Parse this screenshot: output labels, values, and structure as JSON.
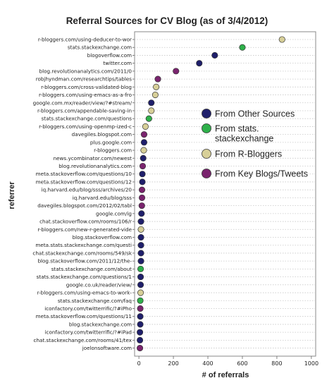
{
  "chart_data": {
    "type": "scatter",
    "title": "Referral Sources for CV Blog (as of 3/4/2012)",
    "xlabel": "# of referrals",
    "ylabel": "referrer",
    "xlim": [
      -25,
      1025
    ],
    "xticks": [
      0,
      200,
      400,
      600,
      800,
      1000
    ],
    "grid": "horizontal dotted",
    "legend_position": "right-middle",
    "groups": [
      {
        "name": "From Other Sources",
        "color": "#1f1f6b"
      },
      {
        "name": "From stats.\nstackexchange",
        "color": "#2eb04a"
      },
      {
        "name": "From R-Bloggers",
        "color": "#d7cf98"
      },
      {
        "name": "From Key Blogs/Tweets",
        "color": "#7a246e"
      }
    ],
    "categories": [
      "r-bloggers.com/using-deducer-to-wor",
      "stats.stackexchange.com",
      "blogoverflow.com",
      "twitter.com",
      "blog.revolutionanalytics.com/2011/0",
      "robjhyndman.com/researchtips/tables",
      "r-bloggers.com/cross-validated-blog",
      "r-bloggers.com/using-emacs-as-a-fro",
      "google.com.mx/reader/view/?#stream/",
      "r-bloggers.com/appendable-saving-in",
      "stats.stackexchange.com/questions",
      "r-bloggers.com/using-openmp-ized-c",
      "davegiles.blogspot.com",
      "plus.google.com",
      "r-bloggers.com",
      "news.ycombinator.com/newest",
      "blog.revolutionanalytics.com",
      "meta.stackoverflow.com/questions/10",
      "meta.stackoverflow.com/questions/12",
      "iq.harvard.edu/blog/sss/archives/20",
      "iq.harvard.edu/blog/sss",
      "davegiles.blogspot.com/2012/02/tabl",
      "google.com/ig",
      "chat.stackoverflow.com/rooms/106/r",
      "r-bloggers.com/new-r-generated-vide",
      "blog.stackoverflow.com",
      "meta.stats.stackexchange.com/questi",
      "chat.stackexchange.com/rooms/549/sk",
      "blog.stackoverflow.com/2011/12/the-",
      "stats.stackexchange.com/about",
      "stats.stackexchange.com/questions/1",
      "google.co.uk/reader/view/",
      "r-bloggers.com/using-emacs-to-work-",
      "stats.stackexchange.com/faq",
      "iconfactory.com/twitterrific/?#iPho",
      "meta.stackoverflow.com/questions/11",
      "blog.stackexchange.com",
      "iconfactory.com/twitterrific/?#iPad",
      "chat.stackexchange.com/rooms/41/tex",
      "joelonsoftware.com"
    ],
    "values": [
      830,
      600,
      440,
      350,
      215,
      110,
      100,
      95,
      72,
      72,
      58,
      38,
      30,
      30,
      28,
      25,
      22,
      20,
      20,
      18,
      18,
      17,
      15,
      12,
      12,
      12,
      12,
      12,
      12,
      10,
      10,
      10,
      10,
      8,
      8,
      8,
      8,
      6,
      6,
      6
    ],
    "group_index": [
      2,
      1,
      0,
      0,
      3,
      3,
      2,
      2,
      0,
      2,
      1,
      2,
      3,
      0,
      2,
      0,
      3,
      0,
      0,
      3,
      3,
      3,
      0,
      0,
      2,
      0,
      0,
      0,
      0,
      1,
      0,
      0,
      2,
      1,
      3,
      0,
      0,
      0,
      0,
      3
    ]
  }
}
